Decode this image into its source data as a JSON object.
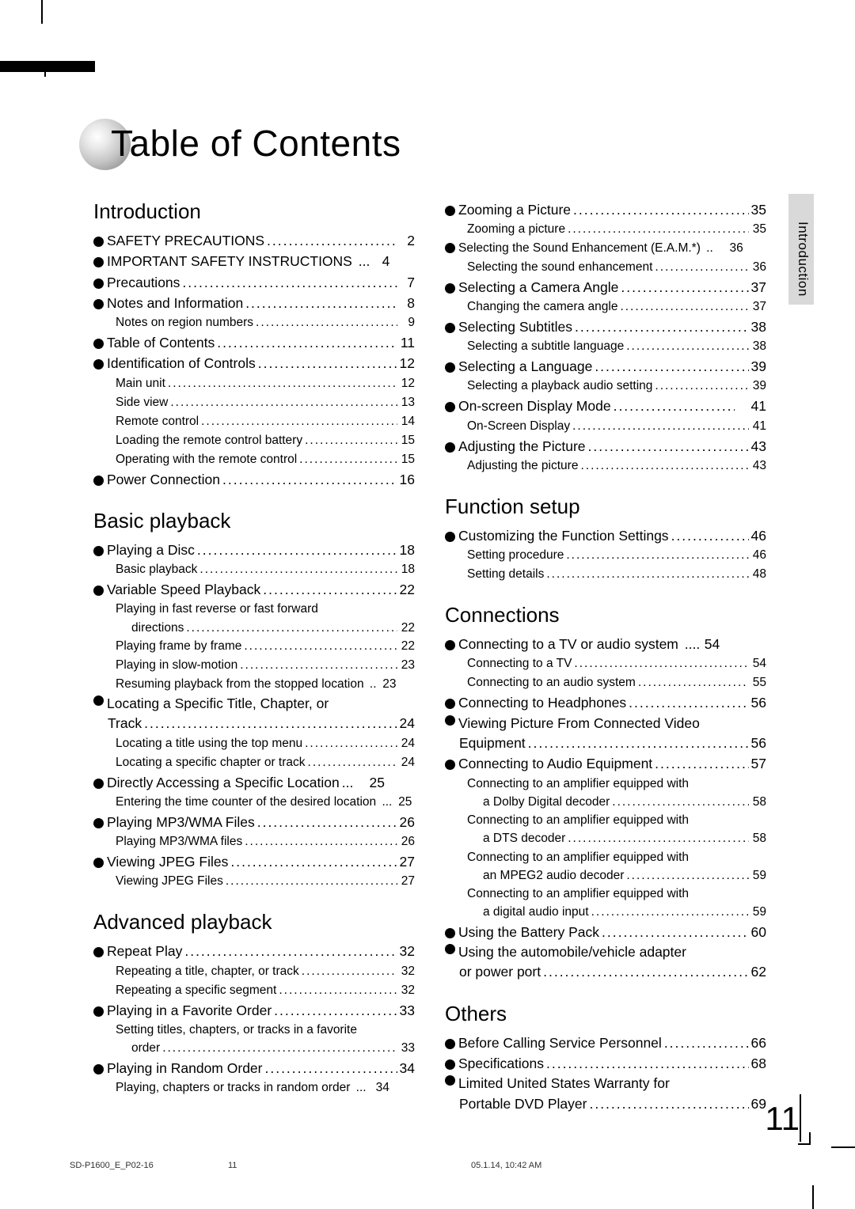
{
  "page": {
    "title": "Table of Contents",
    "number": "11",
    "side_tab": "Introduction",
    "footer_left": "SD-P1600_E_P02-16",
    "footer_mid": "11",
    "footer_right": "05.1.14, 10:42 AM"
  },
  "col": [
    {
      "sections": [
        {
          "heading": "Introduction",
          "items": [
            {
              "t": "main",
              "label": "SAFETY PRECAUTIONS",
              "p": "2"
            },
            {
              "t": "main",
              "label": "IMPORTANT SAFETY INSTRUCTIONS",
              "p": "4",
              "leader": " ..."
            },
            {
              "t": "main",
              "label": "Precautions",
              "p": "7"
            },
            {
              "t": "main",
              "label": "Notes and Information",
              "p": "8"
            },
            {
              "t": "sub",
              "label": "Notes on region numbers",
              "p": "9"
            },
            {
              "t": "main",
              "label": "Table of Contents",
              "p": "11"
            },
            {
              "t": "main",
              "label": "Identification of Controls",
              "p": "12"
            },
            {
              "t": "sub",
              "label": "Main unit",
              "p": "12"
            },
            {
              "t": "sub",
              "label": "Side view",
              "p": "13"
            },
            {
              "t": "sub",
              "label": "Remote control",
              "p": "14"
            },
            {
              "t": "sub",
              "label": "Loading the remote control battery",
              "p": "15"
            },
            {
              "t": "sub",
              "label": "Operating with the remote control",
              "p": "15"
            },
            {
              "t": "main",
              "label": "Power Connection",
              "p": "16"
            }
          ]
        },
        {
          "heading": "Basic playback",
          "items": [
            {
              "t": "main",
              "label": "Playing a Disc",
              "p": "18"
            },
            {
              "t": "sub",
              "label": "Basic playback",
              "p": "18"
            },
            {
              "t": "main",
              "label": "Variable Speed Playback",
              "p": "22"
            },
            {
              "t": "subwrap",
              "label": "Playing in fast reverse or fast forward",
              "cont": "directions",
              "p": "22"
            },
            {
              "t": "sub",
              "label": "Playing frame by frame",
              "p": "22"
            },
            {
              "t": "sub",
              "label": "Playing in slow-motion",
              "p": "23"
            },
            {
              "t": "sub",
              "label": "Resuming playback from the stopped location",
              "p": "23",
              "leader": " .."
            },
            {
              "t": "mainwrap",
              "label": "Locating a Specific Title, Chapter, or",
              "cont": "Track",
              "p": "24"
            },
            {
              "t": "sub",
              "label": "Locating a title using the top menu",
              "p": "24"
            },
            {
              "t": "sub",
              "label": "Locating a specific chapter or track",
              "p": "24"
            },
            {
              "t": "main",
              "label": "Directly Accessing a Specific Location",
              "p": "25",
              "leader": "...   "
            },
            {
              "t": "sub",
              "label": "Entering the time counter of the desired location",
              "p": "25",
              "leader": " ..."
            },
            {
              "t": "main",
              "label": "Playing MP3/WMA Files",
              "p": "26"
            },
            {
              "t": "sub",
              "label": "Playing MP3/WMA files",
              "p": "26"
            },
            {
              "t": "main",
              "label": "Viewing JPEG Files",
              "p": "27"
            },
            {
              "t": "sub",
              "label": "Viewing JPEG Files",
              "p": "27"
            }
          ]
        },
        {
          "heading": "Advanced playback",
          "items": [
            {
              "t": "main",
              "label": "Repeat Play",
              "p": "32"
            },
            {
              "t": "sub",
              "label": "Repeating a title, chapter, or track",
              "p": "32"
            },
            {
              "t": "sub",
              "label": "Repeating a specific segment",
              "p": "32"
            },
            {
              "t": "main",
              "label": "Playing in a Favorite Order",
              "p": "33"
            },
            {
              "t": "subwrap",
              "label": "Setting titles, chapters, or tracks in a favorite",
              "cont": "order",
              "p": "33"
            },
            {
              "t": "main",
              "label": "Playing in Random Order",
              "p": "34"
            },
            {
              "t": "sub",
              "label": "Playing, chapters or tracks in random order",
              "p": "34",
              "leader": " ... "
            }
          ]
        }
      ]
    },
    {
      "sections": [
        {
          "heading": "",
          "items": [
            {
              "t": "main",
              "label": "Zooming a Picture",
              "p": "35"
            },
            {
              "t": "sub",
              "label": "Zooming a picture",
              "p": "35"
            },
            {
              "t": "main",
              "label": "Selecting the Sound Enhancement (E.A.M.*)",
              "p": "36",
              "leader": " ..   ",
              "smaller": true
            },
            {
              "t": "sub",
              "label": "Selecting the sound enhancement",
              "p": "36"
            },
            {
              "t": "main",
              "label": "Selecting a Camera Angle",
              "p": "37"
            },
            {
              "t": "sub",
              "label": "Changing the camera angle",
              "p": "37"
            },
            {
              "t": "main",
              "label": "Selecting Subtitles",
              "p": "38"
            },
            {
              "t": "sub",
              "label": "Selecting a subtitle language",
              "p": "38"
            },
            {
              "t": "main",
              "label": "Selecting a Language",
              "p": "39"
            },
            {
              "t": "sub",
              "label": "Selecting a playback audio setting",
              "p": "39"
            },
            {
              "t": "main",
              "label": "On-screen Display Mode",
              "p": "41",
              "spacedNum": true
            },
            {
              "t": "sub",
              "label": "On-Screen Display",
              "p": "41"
            },
            {
              "t": "main",
              "label": "Adjusting the Picture",
              "p": "43"
            },
            {
              "t": "sub",
              "label": "Adjusting the picture",
              "p": "43"
            }
          ]
        },
        {
          "heading": "Function setup",
          "items": [
            {
              "t": "main",
              "label": "Customizing the Function Settings",
              "p": "46"
            },
            {
              "t": "sub",
              "label": "Setting procedure",
              "p": "46"
            },
            {
              "t": "sub",
              "label": "Setting details",
              "p": "48"
            }
          ]
        },
        {
          "heading": "Connections",
          "items": [
            {
              "t": "main",
              "label": "Connecting to a TV or audio system",
              "p": "54",
              "leader": " ...."
            },
            {
              "t": "sub",
              "label": "Connecting to a TV",
              "p": "54"
            },
            {
              "t": "sub",
              "label": "Connecting to an audio system",
              "p": "55"
            },
            {
              "t": "main",
              "label": "Connecting to Headphones",
              "p": "56"
            },
            {
              "t": "mainwrap",
              "label": "Viewing Picture From Connected Video",
              "cont": "Equipment",
              "p": "56"
            },
            {
              "t": "main",
              "label": "Connecting to Audio Equipment",
              "p": "57"
            },
            {
              "t": "subwrap",
              "label": "Connecting to an amplifier equipped with",
              "cont": "a Dolby Digital decoder",
              "p": "58"
            },
            {
              "t": "subwrap",
              "label": "Connecting to an amplifier equipped with",
              "cont": "a DTS decoder",
              "p": "58"
            },
            {
              "t": "subwrap",
              "label": "Connecting to an amplifier equipped with",
              "cont": "an MPEG2 audio decoder",
              "p": "59"
            },
            {
              "t": "subwrap",
              "label": "Connecting to an amplifier equipped with",
              "cont": "a digital audio input",
              "p": "59"
            },
            {
              "t": "main",
              "label": "Using the Battery Pack",
              "p": "60"
            },
            {
              "t": "mainwrap",
              "label": "Using the automobile/vehicle adapter",
              "cont": "or power port",
              "p": "62"
            }
          ]
        },
        {
          "heading": "Others",
          "items": [
            {
              "t": "main",
              "label": "Before Calling Service Personnel",
              "p": "66"
            },
            {
              "t": "main",
              "label": "Specifications",
              "p": "68"
            },
            {
              "t": "mainwrap",
              "label": "Limited United States Warranty for",
              "cont": "Portable DVD Player",
              "p": "69"
            }
          ]
        }
      ]
    }
  ]
}
